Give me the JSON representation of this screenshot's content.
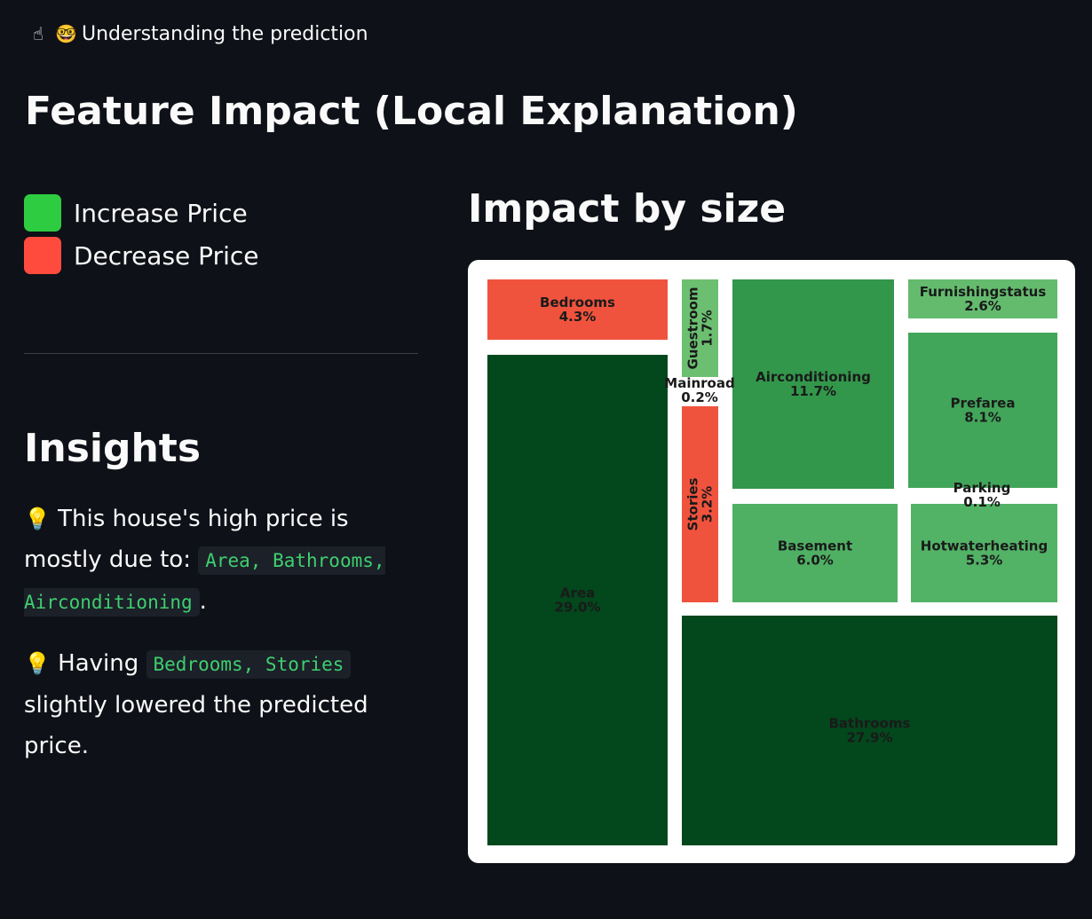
{
  "header": {
    "icons": [
      "pointing-finger-icon",
      "nerd-face-icon"
    ],
    "text": "Understanding the prediction"
  },
  "title": "Feature Impact (Local Explanation)",
  "legend": [
    {
      "label": "Increase Price",
      "color": "#2ecc40"
    },
    {
      "label": "Decrease Price",
      "color": "#ff4b3e"
    }
  ],
  "insights": {
    "title": "Insights",
    "item1": {
      "prefix": "This house's high price is mostly due to:",
      "code": "Area, Bathrooms, Airconditioning",
      "suffix": "."
    },
    "item2": {
      "prefix": "Having",
      "code": "Bedrooms, Stories",
      "suffix": "slightly lowered the predicted price."
    }
  },
  "chart_title": "Impact by size",
  "chart_data": {
    "type": "treemap",
    "items": [
      {
        "name": "Area",
        "pct": 29.0,
        "value": "29.0%",
        "direction": "increase",
        "color": "#03471c"
      },
      {
        "name": "Bathrooms",
        "pct": 27.9,
        "value": "27.9%",
        "direction": "increase",
        "color": "#03471c"
      },
      {
        "name": "Airconditioning",
        "pct": 11.7,
        "value": "11.7%",
        "direction": "increase",
        "color": "#32974b"
      },
      {
        "name": "Prefarea",
        "pct": 8.1,
        "value": "8.1%",
        "direction": "increase",
        "color": "#42a65a"
      },
      {
        "name": "Basement",
        "pct": 6.0,
        "value": "6.0%",
        "direction": "increase",
        "color": "#4fb064"
      },
      {
        "name": "Hotwaterheating",
        "pct": 5.3,
        "value": "5.3%",
        "direction": "increase",
        "color": "#52b266"
      },
      {
        "name": "Bedrooms",
        "pct": 4.3,
        "value": "4.3%",
        "direction": "decrease",
        "color": "#f0533d"
      },
      {
        "name": "Stories",
        "pct": 3.2,
        "value": "3.2%",
        "direction": "decrease",
        "color": "#f0533d"
      },
      {
        "name": "Furnishingstatus",
        "pct": 2.6,
        "value": "2.6%",
        "direction": "increase",
        "color": "#64bb6e"
      },
      {
        "name": "Guestroom",
        "pct": 1.7,
        "value": "1.7%",
        "direction": "increase",
        "color": "#6cbf70"
      },
      {
        "name": "Mainroad",
        "pct": 0.2,
        "value": "0.2%",
        "direction": "increase",
        "color": "#ffffff"
      },
      {
        "name": "Parking",
        "pct": 0.1,
        "value": "0.1%",
        "direction": "increase",
        "color": "#ffffff"
      }
    ]
  }
}
